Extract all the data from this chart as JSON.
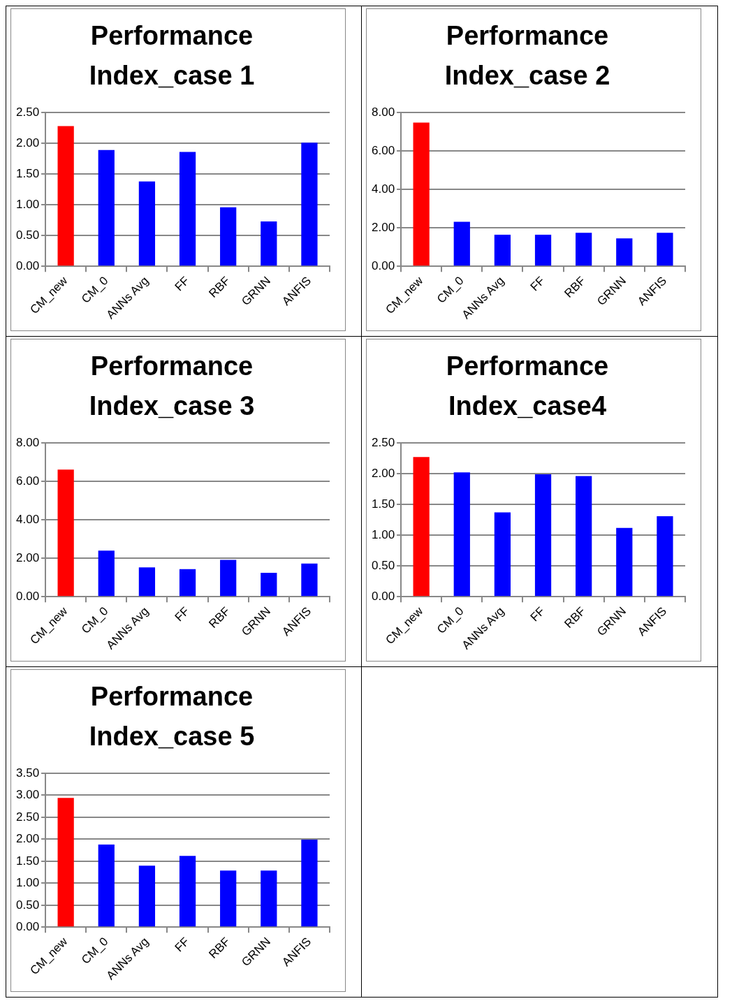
{
  "chart_data": [
    {
      "type": "bar",
      "title": "Performance Index_case 1",
      "categories": [
        "CM_new",
        "CM_0",
        "ANNs Avg",
        "FF",
        "RBF",
        "GRNN",
        "ANFIS"
      ],
      "values": [
        2.28,
        1.89,
        1.38,
        1.86,
        0.96,
        0.73,
        2.01
      ],
      "colors": [
        "#ff0000",
        "#0000ff",
        "#0000ff",
        "#0000ff",
        "#0000ff",
        "#0000ff",
        "#0000ff"
      ],
      "ylim": [
        0,
        2.5
      ],
      "yticks": [
        {
          "value": 0,
          "label": "0.00"
        },
        {
          "value": 0.5,
          "label": "0.50"
        },
        {
          "value": 1,
          "label": "1.00"
        },
        {
          "value": 1.5,
          "label": "1.50"
        },
        {
          "value": 2,
          "label": "2.00"
        },
        {
          "value": 2.5,
          "label": "2.50"
        }
      ],
      "grid": "y",
      "legend": false
    },
    {
      "type": "bar",
      "title": "Performance Index_case 2",
      "categories": [
        "CM_new",
        "CM_0",
        "ANNs Avg",
        "FF",
        "RBF",
        "GRNN",
        "ANFIS"
      ],
      "values": [
        7.47,
        2.32,
        1.65,
        1.65,
        1.75,
        1.46,
        1.75
      ],
      "colors": [
        "#ff0000",
        "#0000ff",
        "#0000ff",
        "#0000ff",
        "#0000ff",
        "#0000ff",
        "#0000ff"
      ],
      "ylim": [
        0,
        8
      ],
      "yticks": [
        {
          "value": 0,
          "label": "0.00"
        },
        {
          "value": 2,
          "label": "2.00"
        },
        {
          "value": 4,
          "label": "4.00"
        },
        {
          "value": 6,
          "label": "6.00"
        },
        {
          "value": 8,
          "label": "8.00"
        }
      ],
      "grid": "y",
      "legend": false
    },
    {
      "type": "bar",
      "title": "Performance Index_case 3",
      "categories": [
        "CM_new",
        "CM_0",
        "ANNs Avg",
        "FF",
        "RBF",
        "GRNN",
        "ANFIS"
      ],
      "values": [
        6.61,
        2.4,
        1.53,
        1.44,
        1.92,
        1.25,
        1.73
      ],
      "colors": [
        "#ff0000",
        "#0000ff",
        "#0000ff",
        "#0000ff",
        "#0000ff",
        "#0000ff",
        "#0000ff"
      ],
      "ylim": [
        0,
        8
      ],
      "yticks": [
        {
          "value": 0,
          "label": "0.00"
        },
        {
          "value": 2,
          "label": "2.00"
        },
        {
          "value": 4,
          "label": "4.00"
        },
        {
          "value": 6,
          "label": "6.00"
        },
        {
          "value": 8,
          "label": "8.00"
        }
      ],
      "grid": "y",
      "legend": false
    },
    {
      "type": "bar",
      "title": "Performance Index_case4",
      "categories": [
        "CM_new",
        "CM_0",
        "ANNs Avg",
        "FF",
        "RBF",
        "GRNN",
        "ANFIS"
      ],
      "values": [
        2.27,
        2.02,
        1.37,
        1.99,
        1.96,
        1.12,
        1.31
      ],
      "colors": [
        "#ff0000",
        "#0000ff",
        "#0000ff",
        "#0000ff",
        "#0000ff",
        "#0000ff",
        "#0000ff"
      ],
      "ylim": [
        0,
        2.5
      ],
      "yticks": [
        {
          "value": 0,
          "label": "0.00"
        },
        {
          "value": 0.5,
          "label": "0.50"
        },
        {
          "value": 1,
          "label": "1.00"
        },
        {
          "value": 1.5,
          "label": "1.50"
        },
        {
          "value": 2,
          "label": "2.00"
        },
        {
          "value": 2.5,
          "label": "2.50"
        }
      ],
      "grid": "y",
      "legend": false
    },
    {
      "type": "bar",
      "title": "Performance Index_case 5",
      "categories": [
        "CM_new",
        "CM_0",
        "ANNs Avg",
        "FF",
        "RBF",
        "GRNN",
        "ANFIS"
      ],
      "values": [
        2.94,
        1.88,
        1.4,
        1.62,
        1.29,
        1.29,
        1.99
      ],
      "colors": [
        "#ff0000",
        "#0000ff",
        "#0000ff",
        "#0000ff",
        "#0000ff",
        "#0000ff",
        "#0000ff"
      ],
      "ylim": [
        0,
        3.5
      ],
      "yticks": [
        {
          "value": 0,
          "label": "0.00"
        },
        {
          "value": 0.5,
          "label": "0.50"
        },
        {
          "value": 1,
          "label": "1.00"
        },
        {
          "value": 1.5,
          "label": "1.50"
        },
        {
          "value": 2,
          "label": "2.00"
        },
        {
          "value": 2.5,
          "label": "2.50"
        },
        {
          "value": 3,
          "label": "3.00"
        },
        {
          "value": 3.5,
          "label": "3.50"
        }
      ],
      "grid": "y",
      "legend": false
    }
  ]
}
